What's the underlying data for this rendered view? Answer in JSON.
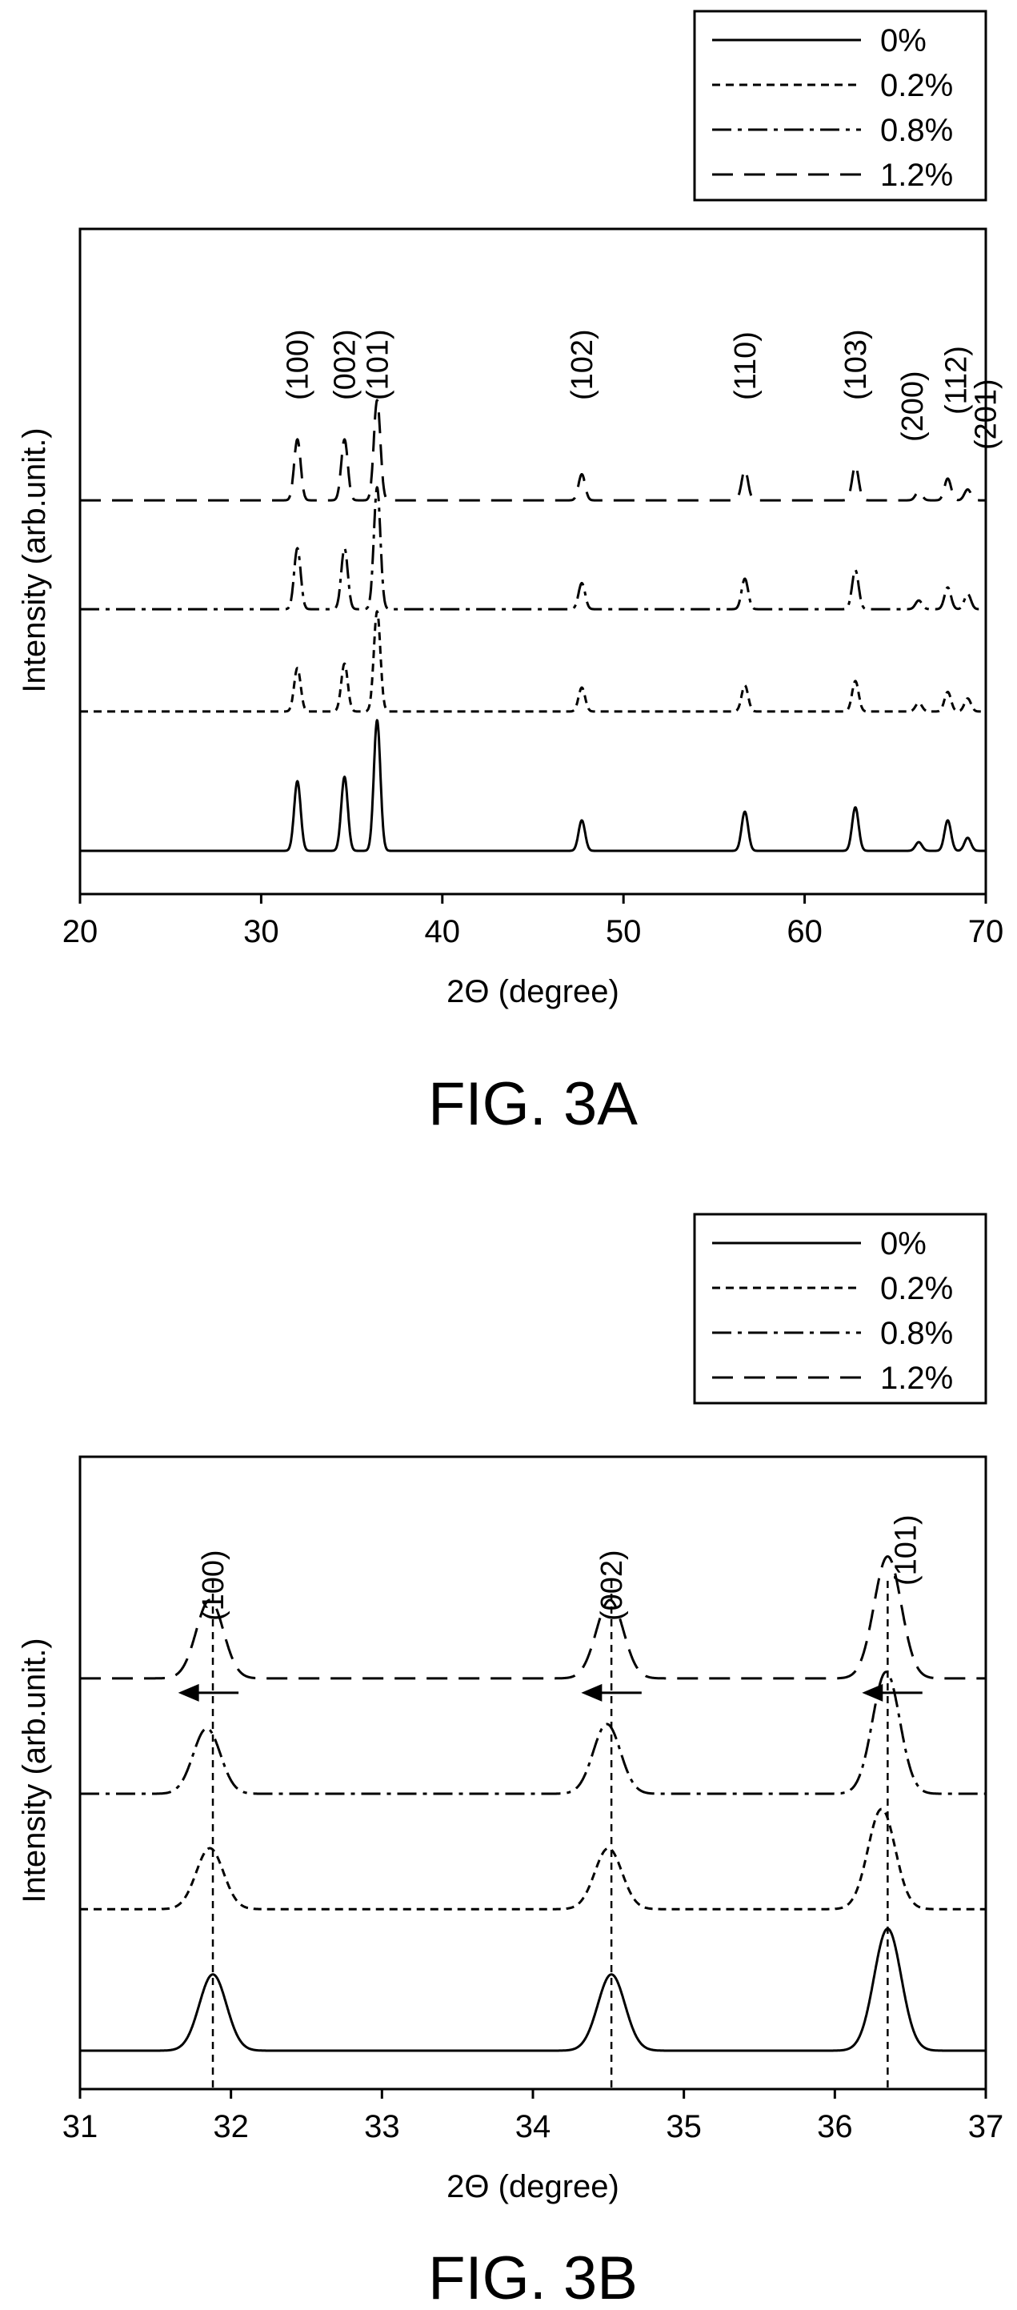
{
  "chart_data": [
    {
      "type": "line",
      "figure_label": "FIG. 3A",
      "title": "",
      "xlabel": "2Θ (degree)",
      "ylabel": "Intensity (arb.unit.)",
      "xlim": [
        20,
        70
      ],
      "x_ticks": [
        20,
        30,
        40,
        50,
        60,
        70
      ],
      "y_ticks_shown": false,
      "grid": false,
      "legend": {
        "placement": "top-right, above plot",
        "entries": [
          "0%",
          "0.2%",
          "0.8%",
          "1.2%"
        ]
      },
      "peak_labels": [
        {
          "text": "(100)",
          "x": 32.0
        },
        {
          "text": "(002)",
          "x": 34.6
        },
        {
          "text": "(101)",
          "x": 36.4
        },
        {
          "text": "(102)",
          "x": 47.7
        },
        {
          "text": "(110)",
          "x": 56.7
        },
        {
          "text": "(103)",
          "x": 62.8
        },
        {
          "text": "(200)",
          "x": 66.3
        },
        {
          "text": "(112)",
          "x": 67.9
        },
        {
          "text": "(201)",
          "x": 69.0
        }
      ],
      "peak_width": 0.18,
      "series": [
        {
          "name": "0%",
          "dash": "solid",
          "baseline": 0.0,
          "peaks": [
            [
              32.0,
              0.32
            ],
            [
              34.6,
              0.34
            ],
            [
              36.4,
              0.6
            ],
            [
              47.7,
              0.14
            ],
            [
              56.7,
              0.18
            ],
            [
              62.8,
              0.2
            ],
            [
              66.3,
              0.04
            ],
            [
              67.9,
              0.14
            ],
            [
              69.0,
              0.06
            ]
          ]
        },
        {
          "name": "0.2%",
          "dash": "short-dash",
          "baseline": 0.64,
          "peaks": [
            [
              32.0,
              0.2
            ],
            [
              34.6,
              0.22
            ],
            [
              36.4,
              0.46
            ],
            [
              47.7,
              0.11
            ],
            [
              56.7,
              0.12
            ],
            [
              62.8,
              0.14
            ],
            [
              66.3,
              0.04
            ],
            [
              67.9,
              0.09
            ],
            [
              69.0,
              0.06
            ]
          ]
        },
        {
          "name": "0.8%",
          "dash": "dash-dot",
          "baseline": 1.11,
          "peaks": [
            [
              32.0,
              0.28
            ],
            [
              34.6,
              0.28
            ],
            [
              36.4,
              0.56
            ],
            [
              47.7,
              0.12
            ],
            [
              56.7,
              0.14
            ],
            [
              62.8,
              0.18
            ],
            [
              66.3,
              0.04
            ],
            [
              67.9,
              0.1
            ],
            [
              69.0,
              0.07
            ]
          ]
        },
        {
          "name": "1.2%",
          "dash": "long-dash",
          "baseline": 1.61,
          "peaks": [
            [
              32.0,
              0.28
            ],
            [
              34.6,
              0.28
            ],
            [
              36.4,
              0.46
            ],
            [
              47.7,
              0.12
            ],
            [
              56.7,
              0.14
            ],
            [
              62.8,
              0.16
            ],
            [
              66.3,
              0.04
            ],
            [
              67.9,
              0.1
            ],
            [
              69.0,
              0.05
            ]
          ]
        }
      ]
    },
    {
      "type": "line",
      "figure_label": "FIG. 3B",
      "title": "",
      "xlabel": "2Θ (degree)",
      "ylabel": "Intensity (arb.unit.)",
      "xlim": [
        31,
        37
      ],
      "x_ticks": [
        31,
        32,
        33,
        34,
        35,
        36,
        37
      ],
      "y_ticks_shown": false,
      "grid": false,
      "legend": {
        "placement": "top-right, above plot",
        "entries": [
          "0%",
          "0.2%",
          "0.8%",
          "1.2%"
        ]
      },
      "peak_labels": [
        {
          "text": "(100)",
          "x": 31.88
        },
        {
          "text": "(002)",
          "x": 34.52
        },
        {
          "text": "(101)",
          "x": 36.35
        }
      ],
      "reference_lines_x": [
        31.88,
        34.52,
        36.35
      ],
      "shift_arrows": [
        {
          "from": 32.05,
          "to": 31.65
        },
        {
          "from": 34.72,
          "to": 34.32
        },
        {
          "from": 36.58,
          "to": 36.18
        }
      ],
      "peak_width": 0.09,
      "series": [
        {
          "name": "0%",
          "dash": "solid",
          "baseline": 0.0,
          "peaks": [
            [
              31.88,
              0.35
            ],
            [
              34.52,
              0.35
            ],
            [
              36.35,
              0.56
            ]
          ]
        },
        {
          "name": "0.2%",
          "dash": "short-dash",
          "baseline": 0.65,
          "peaks": [
            [
              31.86,
              0.28
            ],
            [
              34.5,
              0.28
            ],
            [
              36.31,
              0.46
            ]
          ]
        },
        {
          "name": "0.8%",
          "dash": "dash-dot",
          "baseline": 1.18,
          "peaks": [
            [
              31.84,
              0.3
            ],
            [
              34.49,
              0.32
            ],
            [
              36.34,
              0.56
            ]
          ]
        },
        {
          "name": "1.2%",
          "dash": "long-dash",
          "baseline": 1.71,
          "peaks": [
            [
              31.86,
              0.36
            ],
            [
              34.51,
              0.36
            ],
            [
              36.35,
              0.56
            ]
          ]
        }
      ]
    }
  ]
}
